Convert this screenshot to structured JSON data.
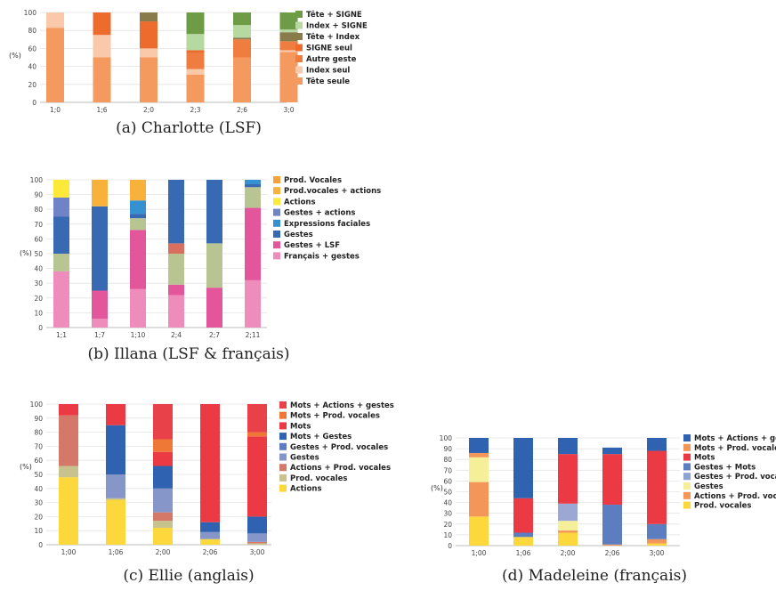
{
  "chart_data": [
    {
      "type": "bar",
      "stacked": true,
      "caption": "(a) Charlotte (LSF)",
      "ylabel": "(%)",
      "ylim": [
        0,
        100
      ],
      "yticks": [
        0,
        20,
        40,
        60,
        80,
        100
      ],
      "categories": [
        "1;0",
        "1;6",
        "2;0",
        "2;3",
        "2;6",
        "3;0"
      ],
      "legend": [
        "Tête + SIGNE",
        "Index + SIGNE",
        "Tête + Index",
        "SIGNE seul",
        "Autre geste",
        "Index seul",
        "Tête seule"
      ],
      "series": [
        {
          "name": "Tête seule",
          "color": "#f59a5f",
          "values": [
            83,
            50,
            50,
            31,
            50,
            56
          ]
        },
        {
          "name": "Index seul",
          "color": "#f9c9a9",
          "values": [
            17,
            25,
            10,
            6,
            0,
            2
          ]
        },
        {
          "name": "Autre geste",
          "color": "#ef7d3f",
          "values": [
            0,
            0,
            0,
            18,
            20,
            10
          ]
        },
        {
          "name": "SIGNE seul",
          "color": "#ec6b2d",
          "values": [
            0,
            25,
            30,
            3,
            0,
            0
          ]
        },
        {
          "name": "Tête + Index",
          "color": "#8a7b4a",
          "values": [
            0,
            0,
            10,
            0,
            2,
            10
          ]
        },
        {
          "name": "Index + SIGNE",
          "color": "#b5d9a0",
          "values": [
            0,
            0,
            0,
            18,
            14,
            3
          ]
        },
        {
          "name": "Tête + SIGNE",
          "color": "#6e9b45",
          "values": [
            0,
            0,
            0,
            24,
            14,
            19
          ]
        }
      ]
    },
    {
      "type": "bar",
      "stacked": true,
      "caption": "(b) Illana (LSF & français)",
      "ylabel": "(%)",
      "ylim": [
        0,
        100
      ],
      "yticks": [
        0,
        10,
        20,
        30,
        40,
        50,
        60,
        70,
        80,
        90,
        100
      ],
      "categories": [
        "1;1",
        "1;7",
        "1;10",
        "2;4",
        "2;7",
        "2;11"
      ],
      "legend": [
        "Prod. Vocales",
        "Prod.vocales + actions",
        "Actions",
        "Gestes + actions",
        "Expressions faciales",
        "Gestes",
        "Gestes + LSF",
        "Français + gestes"
      ],
      "series": [
        {
          "name": "Français + gestes",
          "color": "#ee8cbc",
          "values": [
            38,
            6,
            26,
            22,
            0,
            32
          ]
        },
        {
          "name": "Gestes + LSF",
          "color": "#e3569b",
          "values": [
            0,
            19,
            40,
            7,
            27,
            49
          ]
        },
        {
          "name": "Gestes + LSF",
          "color": "#b9c493",
          "values": [
            12,
            0,
            8,
            21,
            30,
            14
          ]
        },
        {
          "name": "Gestes + LSF",
          "color": "#d9705f",
          "values": [
            0,
            0,
            0,
            7,
            0,
            0
          ]
        },
        {
          "name": "Gestes",
          "color": "#3869b3",
          "values": [
            25,
            57,
            3,
            43,
            43,
            2
          ]
        },
        {
          "name": "Expressions faciales",
          "color": "#3591cf",
          "values": [
            0,
            0,
            9,
            0,
            0,
            3
          ]
        },
        {
          "name": "Gestes + actions",
          "color": "#6f83c6",
          "values": [
            13,
            0,
            0,
            0,
            0,
            0
          ]
        },
        {
          "name": "Prod.vocales + actions",
          "color": "#f8b23c",
          "values": [
            0,
            18,
            14,
            0,
            0,
            0
          ]
        },
        {
          "name": "Actions",
          "color": "#fce93a",
          "values": [
            12,
            0,
            0,
            0,
            0,
            0
          ]
        }
      ]
    },
    {
      "type": "bar",
      "stacked": true,
      "caption": "(c) Ellie (anglais)",
      "ylabel": "(%)",
      "ylim": [
        0,
        100
      ],
      "yticks": [
        0,
        10,
        20,
        30,
        40,
        50,
        60,
        70,
        80,
        90,
        100
      ],
      "categories": [
        "1;00",
        "1;06",
        "2;00",
        "2;06",
        "3;00"
      ],
      "legend": [
        "Mots + Actions + gestes",
        "Mots + Prod. vocales",
        "Mots",
        "Mots + Gestes",
        "Gestes + Prod. vocales",
        "Gestes",
        "Actions + Prod. vocales",
        "Prod. vocales",
        "Actions"
      ],
      "series": [
        {
          "name": "Actions",
          "color": "#fcd83c",
          "values": [
            48,
            32,
            12,
            4,
            0
          ]
        },
        {
          "name": "Prod. vocales",
          "color": "#c7c28e",
          "values": [
            8,
            1,
            5,
            0,
            1
          ]
        },
        {
          "name": "Actions + Prod. vocales",
          "color": "#d4786a",
          "values": [
            36,
            0,
            6,
            0,
            1
          ]
        },
        {
          "name": "Gestes",
          "color": "#8796c8",
          "values": [
            0,
            17,
            17,
            5,
            6
          ]
        },
        {
          "name": "Gestes + Prod. vocales",
          "color": "#5c7ec0",
          "values": [
            0,
            0,
            0,
            0,
            0
          ]
        },
        {
          "name": "Mots + Gestes",
          "color": "#2f62b0",
          "values": [
            0,
            35,
            16,
            7,
            12
          ]
        },
        {
          "name": "Mots",
          "color": "#ec3a45",
          "values": [
            8,
            15,
            10,
            84,
            57
          ]
        },
        {
          "name": "Mots + Prod. vocales",
          "color": "#f07837",
          "values": [
            0,
            0,
            9,
            0,
            3
          ]
        },
        {
          "name": "Mots + Actions + gestes",
          "color": "#e8414a",
          "values": [
            0,
            0,
            25,
            0,
            20
          ]
        }
      ]
    },
    {
      "type": "bar",
      "stacked": true,
      "caption": "(d) Madeleine (français)",
      "ylabel": "(%)",
      "ylim": [
        0,
        100
      ],
      "yticks": [
        0,
        10,
        20,
        30,
        40,
        50,
        60,
        70,
        80,
        90,
        100
      ],
      "categories": [
        "1;00",
        "1;06",
        "2;00",
        "2;06",
        "3;00"
      ],
      "legend": [
        "Mots + Actions + gestes",
        "Mots + Prod. vocales",
        "Mots",
        "Gestes + Mots",
        "Gestes + Prod. vocales",
        "Gestes",
        "Actions + Prod. vocales",
        "Prod. vocales"
      ],
      "series": [
        {
          "name": "Prod. vocales",
          "color": "#fcd83c",
          "values": [
            27,
            8,
            12,
            0,
            2
          ]
        },
        {
          "name": "Actions + Prod. vocales",
          "color": "#f4955a",
          "values": [
            0,
            0,
            2,
            1,
            4
          ]
        },
        {
          "name": "Gestes",
          "color": "#f6ef9a",
          "values": [
            0,
            0,
            9,
            0,
            0
          ]
        },
        {
          "name": "Gestes + Prod. vocales",
          "color": "#8ea3d2",
          "values": [
            0,
            0,
            0,
            0,
            0
          ]
        },
        {
          "name": "Gestes + Prod. vocales",
          "color": "#9aa8d3",
          "values": [
            0,
            0,
            16,
            0,
            0
          ]
        },
        {
          "name": "Gestes + Mots",
          "color": "#5c7ec0",
          "values": [
            0,
            0,
            0,
            37,
            14
          ]
        },
        {
          "name": "Actions + Prod. vocales",
          "color": "#f4955a",
          "values": [
            32,
            0,
            0,
            0,
            0
          ]
        },
        {
          "name": "Gestes",
          "color": "#f6ef9a",
          "values": [
            23,
            0,
            0,
            0,
            0
          ]
        },
        {
          "name": "Mots + Prod. vocales",
          "color": "#f4955a",
          "values": [
            4,
            0,
            0,
            0,
            0
          ]
        },
        {
          "name": "Gestes + Mots",
          "color": "#5c7ec0",
          "values": [
            0,
            4,
            0,
            0,
            0
          ]
        },
        {
          "name": "Mots",
          "color": "#ec3a45",
          "values": [
            0,
            32,
            46,
            47,
            68
          ]
        },
        {
          "name": "Mots + Actions + gestes",
          "color": "#2f62b0",
          "values": [
            14,
            56,
            15,
            6,
            12
          ]
        }
      ]
    }
  ],
  "legend_colors": {
    "a": [
      "#6e9b45",
      "#b5d9a0",
      "#8a7b4a",
      "#ec6b2d",
      "#ef7d3f",
      "#f9c9a9",
      "#f59a5f"
    ],
    "b": [
      "#f8a13c",
      "#f8b23c",
      "#fce93a",
      "#6f83c6",
      "#3591cf",
      "#3869b3",
      "#e3569b",
      "#ee8cbc"
    ],
    "c": [
      "#e8414a",
      "#f07837",
      "#ec3a45",
      "#2f62b0",
      "#5c7ec0",
      "#8796c8",
      "#d4786a",
      "#c7c28e",
      "#fcd83c"
    ],
    "d": [
      "#2f62b0",
      "#f4955a",
      "#ec3a45",
      "#5c7ec0",
      "#8ea3d2",
      "#f6ef9a",
      "#f4955a",
      "#fcd83c"
    ]
  }
}
